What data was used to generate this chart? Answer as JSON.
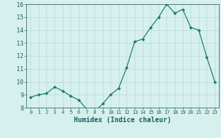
{
  "x": [
    0,
    1,
    2,
    3,
    4,
    5,
    6,
    7,
    8,
    9,
    10,
    11,
    12,
    13,
    14,
    15,
    16,
    17,
    18,
    19,
    20,
    21,
    22,
    23
  ],
  "y": [
    8.8,
    9.0,
    9.1,
    9.6,
    9.3,
    8.9,
    8.6,
    7.9,
    7.7,
    8.3,
    9.0,
    9.5,
    11.1,
    13.1,
    13.3,
    14.2,
    15.0,
    16.0,
    15.3,
    15.6,
    14.2,
    14.0,
    11.9,
    10.0
  ],
  "xlabel": "Humidex (Indice chaleur)",
  "ylim": [
    8,
    16
  ],
  "yticks": [
    8,
    9,
    10,
    11,
    12,
    13,
    14,
    15,
    16
  ],
  "xticks": [
    0,
    1,
    2,
    3,
    4,
    5,
    6,
    7,
    8,
    9,
    10,
    11,
    12,
    13,
    14,
    15,
    16,
    17,
    18,
    19,
    20,
    21,
    22,
    23
  ],
  "line_color": "#1a7a6e",
  "marker": "D",
  "marker_size": 2.0,
  "bg_color": "#d6f0ee",
  "grid_color": "#b8d8d4",
  "axes_color": "#336666",
  "label_color": "#1a5f5f",
  "tick_label_color": "#1a5f5f",
  "xlim": [
    -0.5,
    23.5
  ],
  "xlabel_fontsize": 7.0,
  "ytick_fontsize": 6.0,
  "xtick_fontsize": 5.2
}
